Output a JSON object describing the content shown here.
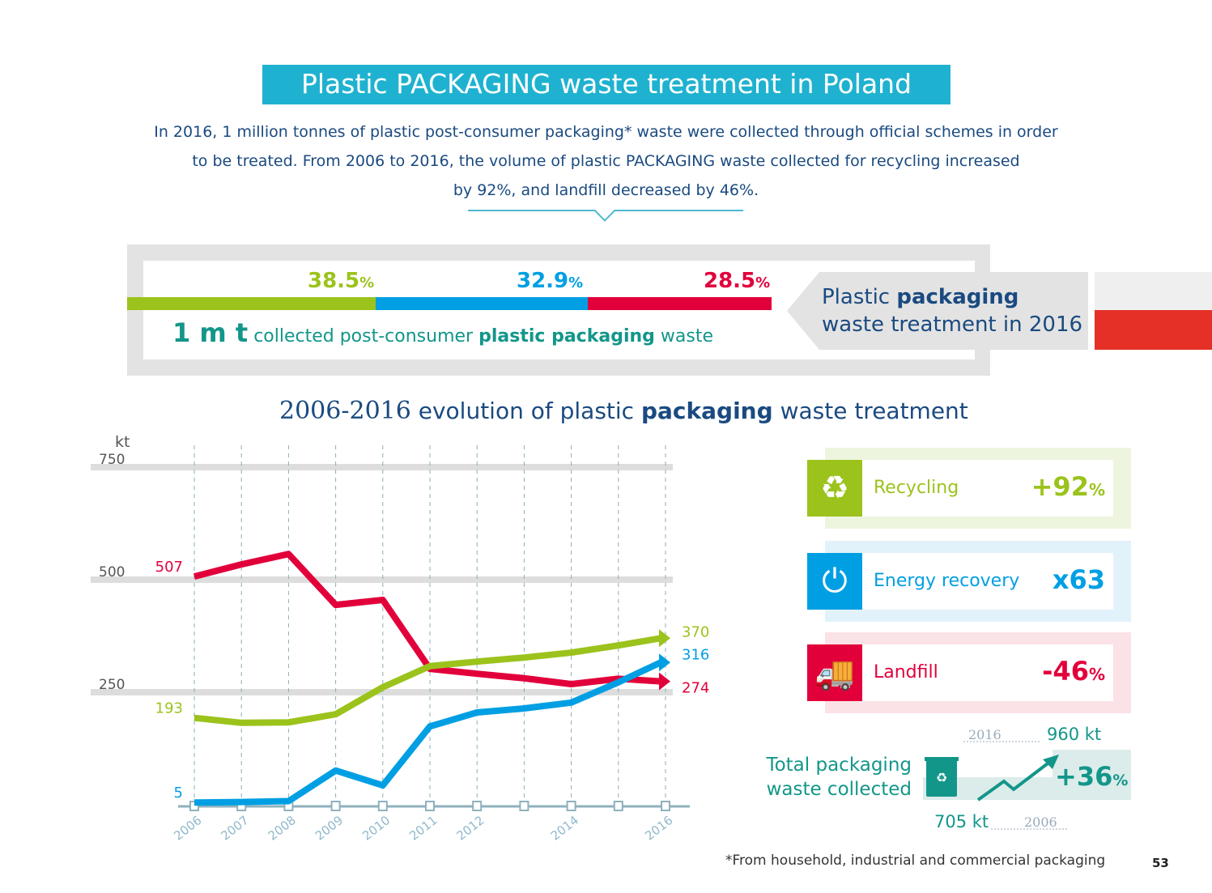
{
  "title": "Plastic PACKAGING waste treatment in Poland",
  "intro": [
    "In 2016, 1 million tonnes of plastic post-consumer packaging* waste were collected through official schemes in order",
    "to be treated. From 2006 to 2016, the volume of plastic PACKAGING waste collected for recycling increased",
    "by 92%, and landfill decreased by 46%."
  ],
  "split": {
    "items": [
      {
        "label": "Recycling",
        "value": "38.5",
        "unit": "%",
        "color": "#9bc31c"
      },
      {
        "label": "Energy recovery",
        "value": "32.9",
        "unit": "%",
        "color": "#009fe3"
      },
      {
        "label": "Landfill",
        "value": "28.5",
        "unit": "%",
        "color": "#e2003b"
      }
    ],
    "total_big": "1 m t",
    "total_text1": "collected post-consumer",
    "total_bold": "plastic packaging",
    "total_text2": "waste",
    "callout_pre": "Plastic",
    "callout_bold": "packaging",
    "callout_line2": "waste treatment in 2016"
  },
  "subtitle": {
    "years": "2006-2016",
    "pre": "evolution of plastic",
    "bold": "packaging",
    "post": "waste treatment"
  },
  "chart_data": {
    "type": "line",
    "ylabel": "kt",
    "ylim": [
      0,
      750
    ],
    "yticks": [
      250,
      500,
      750
    ],
    "x": [
      2006,
      2007,
      2008,
      2009,
      2010,
      2011,
      2012,
      2013,
      2014,
      2015,
      2016
    ],
    "xtick_labels": [
      "2006",
      "2007",
      "2008",
      "2009",
      "2010",
      "2011",
      "2012",
      "",
      "2014",
      "",
      "2016"
    ],
    "grid": "horizontal",
    "series": [
      {
        "key": "landfill",
        "color": "#e2003b",
        "values": [
          507,
          534,
          557,
          444,
          455,
          302,
          291,
          281,
          268,
          280,
          274
        ],
        "start_label": "507",
        "end_label": "274"
      },
      {
        "key": "recycling",
        "color": "#9bc31c",
        "values": [
          193,
          182,
          183,
          201,
          261,
          308,
          318,
          327,
          338,
          354,
          370
        ],
        "start_label": "193",
        "end_label": "370"
      },
      {
        "key": "energy",
        "color": "#009fe3",
        "values": [
          5,
          6,
          8,
          76,
          43,
          174,
          205,
          214,
          227,
          272,
          316
        ],
        "start_label": "5",
        "end_label": "316"
      }
    ]
  },
  "changes": [
    {
      "label": "Recycling",
      "value": "+92",
      "unit": "%",
      "icon": "recycle-icon",
      "color": "#9bc31c",
      "bg": "#eef5df"
    },
    {
      "label": "Energy recovery",
      "value": "x63",
      "unit": "",
      "icon": "power-icon",
      "color": "#009fe3",
      "bg": "#e2f2fb"
    },
    {
      "label": "Landfill",
      "value": "-46",
      "unit": "%",
      "icon": "dump-truck-icon",
      "color": "#e2003b",
      "bg": "#fbe2e6"
    }
  ],
  "total_collected": {
    "label1": "Total packaging",
    "label2": "waste collected",
    "year_end": "2016",
    "value_end": "960 kt",
    "year_start": "2006",
    "value_start": "705 kt",
    "change": "+36",
    "unit": "%",
    "color": "#13968a"
  },
  "footnote": "*From household, industrial and commercial packaging",
  "page_number": "53"
}
